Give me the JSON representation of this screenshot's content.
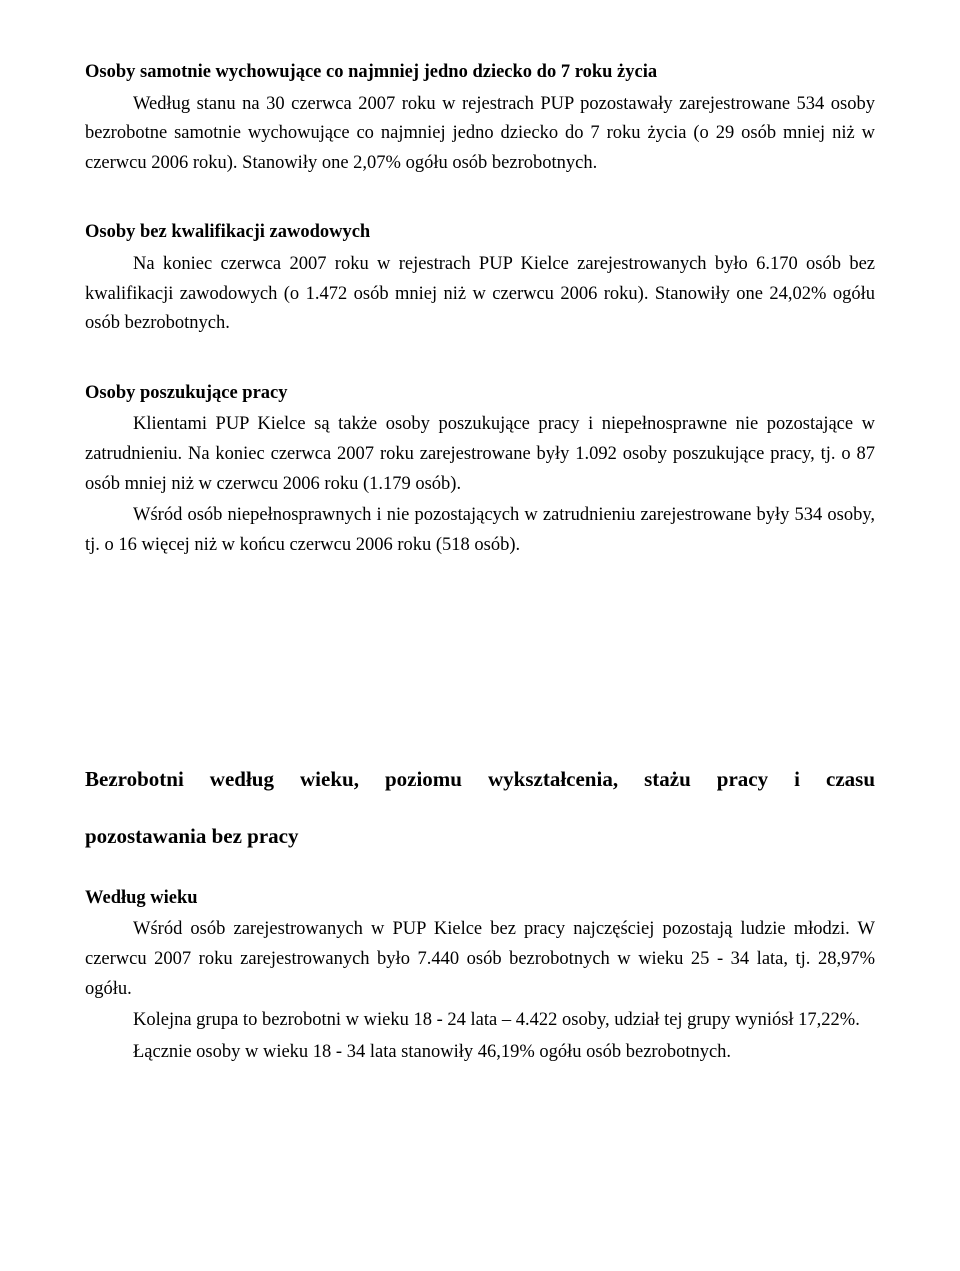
{
  "sec1": {
    "heading": "Osoby samotnie wychowujące co najmniej jedno dziecko do 7 roku życia",
    "p1": "Według stanu na 30 czerwca 2007 roku w rejestrach PUP pozostawały zarejestrowane 534 osoby bezrobotne samotnie wychowujące co najmniej jedno dziecko do 7 roku życia (o 29 osób mniej niż w czerwcu 2006 roku). Stanowiły one 2,07% ogółu osób bezrobotnych."
  },
  "sec2": {
    "heading": "Osoby bez kwalifikacji zawodowych",
    "p1": "Na koniec czerwca 2007 roku w rejestrach PUP Kielce zarejestrowanych było 6.170 osób bez kwalifikacji zawodowych (o 1.472 osób mniej niż w czerwcu 2006 roku). Stanowiły one 24,02% ogółu osób bezrobotnych."
  },
  "sec3": {
    "heading": "Osoby poszukujące pracy",
    "p1": "Klientami PUP Kielce są także osoby poszukujące pracy i niepełnosprawne nie pozostające w zatrudnieniu. Na  koniec czerwca 2007 roku zarejestrowane  były 1.092 osoby poszukujące pracy, tj. o 87 osób mniej niż w czerwcu 2006 roku (1.179 osób).",
    "p2": "Wśród osób niepełnosprawnych i nie pozostających w zatrudnieniu zarejestrowane były 534 osoby, tj. o 16 więcej niż w końcu czerwcu 2006 roku (518 osób)."
  },
  "major": {
    "line1": "Bezrobotni według wieku, poziomu wykształcenia, stażu pracy i czasu",
    "line2": "pozostawania bez pracy"
  },
  "sec4": {
    "heading": "Według wieku",
    "p1": "Wśród osób zarejestrowanych w PUP Kielce bez pracy najczęściej pozostają ludzie młodzi. W czerwcu 2007 roku zarejestrowanych było 7.440 osób bezrobotnych w wieku 25 - 34 lata, tj. 28,97% ogółu.",
    "p2": "Kolejna grupa to bezrobotni w wieku 18 - 24 lata – 4.422 osoby, udział tej grupy wyniósł 17,22%.",
    "p3": "Łącznie osoby w wieku  18 - 34 lata stanowiły 46,19% ogółu osób bezrobotnych."
  }
}
